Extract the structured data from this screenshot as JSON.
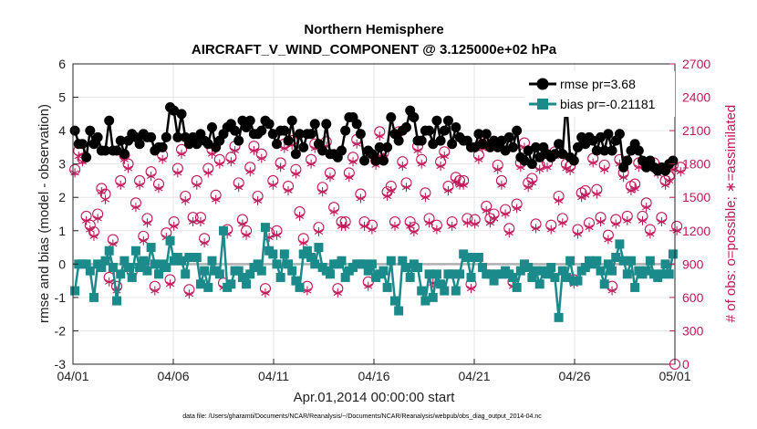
{
  "chart_data": {
    "type": "line",
    "title": "Northern Hemisphere",
    "subtitle": "AIRCRAFT_V_WIND_COMPONENT @ 3.125000e+02 hPa",
    "xlabel": "Apr.01,2014 00:00:00 start",
    "ylabel": "rmse and bias (model - observation)",
    "ylabel_right": "# of obs: o=possible; ∗=assimilated",
    "xlim": [
      0,
      30
    ],
    "ylim": [
      -3,
      6
    ],
    "ylim_right": [
      0,
      2700
    ],
    "x_ticks": [
      0,
      5,
      10,
      15,
      20,
      25,
      30
    ],
    "x_tick_labels": [
      "04/01",
      "04/06",
      "04/11",
      "04/16",
      "04/21",
      "04/26",
      "05/01"
    ],
    "y_ticks": [
      "-3",
      "-2",
      "-1",
      "0",
      "1",
      "2",
      "3",
      "4",
      "5",
      "6"
    ],
    "y_ticks_right": [
      "0",
      "300",
      "600",
      "900",
      "1200",
      "1500",
      "1800",
      "2100",
      "2400",
      "2700"
    ],
    "legend_position": "top-right",
    "footnote": "data file: /Users/gharamti/Documents/NCAR/Reanalysis/~/Documents/NCAR/Reanalysis/webpub/obs_diag_output_2014-04.nc",
    "colors": {
      "rmse": "#000000",
      "bias": "#1a8a8a",
      "obs": "#c2185b",
      "zero": "#b0b0b0"
    },
    "series": [
      {
        "name": "rmse",
        "legend_label": "rmse pr=3.68",
        "values": [
          4.0,
          3.6,
          3.6,
          3.2,
          4.0,
          3.6,
          3.8,
          3.4,
          3.4,
          4.3,
          3.4,
          3.4,
          3.7,
          3.3,
          3.7,
          3.9,
          3.8,
          3.6,
          3.9,
          3.8,
          3.8,
          3.4,
          3.5,
          3.5,
          3.8,
          4.7,
          4.6,
          3.8,
          4.5,
          3.8,
          3.6,
          3.8,
          3.6,
          3.9,
          3.7,
          3.6,
          4.1,
          3.5,
          3.7,
          3.9,
          4.1,
          4.2,
          4.0,
          3.7,
          4.3,
          4.1,
          4.3,
          3.9,
          3.9,
          4.0,
          4.3,
          4.2,
          3.9,
          3.6,
          4.0,
          4.0,
          3.7,
          4.3,
          3.3,
          3.9,
          3.5,
          3.9,
          3.9,
          4.2,
          3.6,
          3.4,
          4.2,
          3.3,
          3.3,
          3.2,
          3.4,
          4.0,
          4.4,
          4.4,
          4.2,
          3.9,
          3.1,
          3.4,
          3.3,
          3.1,
          3.5,
          3.1,
          3.5,
          4.4,
          3.9,
          3.7,
          4.0,
          4.1,
          4.6,
          4.4,
          3.7,
          3.7,
          4.0,
          4.0,
          3.6,
          4.3,
          3.7,
          4.0,
          4.3,
          3.6,
          4.1,
          3.8,
          3.7,
          3.7,
          3.5,
          3.5,
          3.9,
          3.6,
          3.9,
          3.5,
          3.7,
          3.5,
          3.7,
          3.4,
          3.8,
          3.5,
          4.0,
          3.2,
          3.1,
          3.4,
          3.0,
          3.5,
          3.2,
          3.5,
          3.3,
          3.2,
          3.3,
          3.6,
          3.3,
          4.9,
          3.2,
          3.1,
          3.5,
          3.8,
          3.6,
          3.8,
          3.7,
          3.4,
          3.8,
          3.4,
          3.9,
          3.4,
          3.7,
          3.9,
          2.9,
          3.1,
          3.4,
          3.6,
          3.4,
          3.1,
          2.9,
          3.1,
          2.9,
          2.8,
          2.9,
          2.8,
          3.0,
          3.1
        ]
      },
      {
        "name": "bias",
        "legend_label": "bias pr=-0.21181",
        "values": [
          -0.8,
          0.0,
          0.0,
          0.0,
          -0.2,
          -1.0,
          0.0,
          -0.1,
          0.1,
          0.4,
          -0.1,
          -1.1,
          -0.3,
          0.1,
          -0.1,
          -0.4,
          0.4,
          -0.1,
          0.1,
          -0.2,
          0.5,
          0.0,
          -0.3,
          0.0,
          -0.1,
          0.7,
          0.1,
          0.2,
          0.1,
          -0.3,
          0.2,
          0.2,
          0.2,
          -0.6,
          -0.2,
          -0.7,
          0.1,
          -0.2,
          -0.3,
          1.0,
          -0.7,
          -0.6,
          -0.2,
          -0.2,
          -0.4,
          -0.6,
          -0.3,
          -0.1,
          0.0,
          -0.2,
          1.1,
          0.4,
          0.3,
          0.0,
          -0.4,
          0.3,
          0.0,
          -0.2,
          -0.5,
          -0.7,
          0.3,
          0.4,
          0.2,
          0.0,
          0.5,
          -0.1,
          -0.2,
          -0.3,
          0.0,
          0.0,
          0.1,
          -0.4,
          -0.2,
          -0.1,
          0.0,
          0.0,
          0.0,
          -0.2,
          0.0,
          -0.4,
          -0.3,
          -0.2,
          -0.7,
          0.1,
          -1.1,
          -1.4,
          0.1,
          -0.1,
          -0.4,
          0.0,
          -0.1,
          -0.8,
          -1.1,
          -0.3,
          -1.0,
          -0.3,
          -0.6,
          -0.8,
          -0.3,
          -0.3,
          -0.8,
          -0.3,
          0.3,
          0.2,
          -0.4,
          0.2,
          0.2,
          -0.1,
          -0.3,
          -0.3,
          -0.5,
          -0.3,
          -0.3,
          -0.2,
          -0.3,
          -0.4,
          -0.7,
          -0.2,
          0.0,
          -0.1,
          -0.4,
          -0.2,
          -0.6,
          -0.2,
          -0.3,
          -0.1,
          -0.4,
          -1.6,
          -0.2,
          -0.4,
          0.1,
          -0.5,
          -0.5,
          -0.2,
          -0.1,
          0.1,
          0.0,
          0.1,
          -0.2,
          -0.6,
          0.0,
          -0.2,
          0.2,
          0.6,
          0.1,
          -0.3,
          0.1,
          -0.7,
          -0.2,
          -0.3,
          -0.2,
          0.1,
          -0.3,
          -0.4,
          -0.3,
          0.0,
          -0.3,
          0.3
        ]
      },
      {
        "name": "possible",
        "values": [
          1750,
          1920,
          1850,
          1330,
          1250,
          1190,
          1350,
          1580,
          1530,
          780,
          1120,
          700,
          1650,
          1880,
          1800,
          830,
          1450,
          1650,
          1150,
          1310,
          1730,
          700,
          1620,
          1880,
          1180,
          760,
          1280,
          1760,
          1930,
          1510,
          670,
          1320,
          1650,
          1320,
          1130,
          1760,
          1930,
          1520,
          1840,
          730,
          1210,
          1860,
          1960,
          1630,
          1300,
          1200,
          1770,
          1960,
          1510,
          1890,
          680,
          1180,
          1650,
          1200,
          1810,
          1980,
          1600,
          2010,
          1750,
          1370,
          1130,
          700,
          1840,
          1980,
          1230,
          1590,
          2000,
          1720,
          1410,
          680,
          1280,
          1280,
          1720,
          1860,
          2020,
          1530,
          1280,
          740,
          1250,
          1830,
          2090,
          1900,
          1550,
          1600,
          1280,
          2090,
          1820,
          1630,
          1280,
          1230,
          1960,
          1840,
          1540,
          1310,
          770,
          1250,
          1820,
          1910,
          1600,
          1280,
          1680,
          1650,
          1650,
          1310,
          720,
          1300,
          1880,
          1980,
          1420,
          1310,
          1350,
          1790,
          1650,
          1390,
          1220,
          740,
          1440,
          1810,
          1990,
          1630,
          1670,
          1260,
          1790,
          1910,
          1810,
          1250,
          1910,
          1510,
          1310,
          1800,
          1780,
          760,
          1210,
          1540,
          1560,
          1270,
          1850,
          1570,
          1320,
          1790,
          1160,
          700,
          1300,
          1840,
          1720,
          1330,
          1600,
          1620,
          1810,
          1330,
          1450,
          1210,
          1810,
          1750,
          1320,
          1650,
          1690,
          1790,
          1240,
          1770
        ]
      },
      {
        "name": "assimilated",
        "values": [
          1720,
          1870,
          1820,
          1290,
          1210,
          1150,
          1310,
          1550,
          1480,
          740,
          1080,
          660,
          1610,
          1840,
          1760,
          790,
          1410,
          1610,
          1110,
          1270,
          1690,
          660,
          1580,
          1840,
          1140,
          720,
          1240,
          1720,
          1890,
          1470,
          630,
          1280,
          1610,
          1280,
          1090,
          1720,
          1890,
          1480,
          1800,
          690,
          1170,
          1820,
          1920,
          1590,
          1260,
          1160,
          1730,
          1920,
          1470,
          1850,
          640,
          1140,
          1610,
          1160,
          1770,
          1940,
          1560,
          1970,
          1710,
          1330,
          1090,
          660,
          1800,
          1940,
          1190,
          1550,
          1960,
          1680,
          1370,
          640,
          1240,
          1240,
          1680,
          1820,
          1980,
          1490,
          1240,
          700,
          1210,
          1790,
          2050,
          1860,
          1510,
          1560,
          1240,
          2050,
          1780,
          1590,
          1240,
          1190,
          1920,
          1800,
          1500,
          1270,
          730,
          1210,
          1780,
          1870,
          1560,
          1240,
          1640,
          1610,
          1610,
          1270,
          680,
          1260,
          1840,
          1940,
          1380,
          1270,
          1310,
          1750,
          1610,
          1350,
          1180,
          700,
          1400,
          1770,
          1950,
          1590,
          1630,
          1220,
          1750,
          1870,
          1770,
          1210,
          1870,
          1470,
          1270,
          1760,
          1740,
          720,
          1170,
          1500,
          1520,
          1230,
          1810,
          1530,
          1280,
          1750,
          1120,
          660,
          1260,
          1800,
          1680,
          1290,
          1560,
          1580,
          1770,
          1290,
          1410,
          1170,
          1770,
          1710,
          1280,
          1610,
          1650,
          1750,
          1200,
          1730
        ]
      }
    ]
  }
}
